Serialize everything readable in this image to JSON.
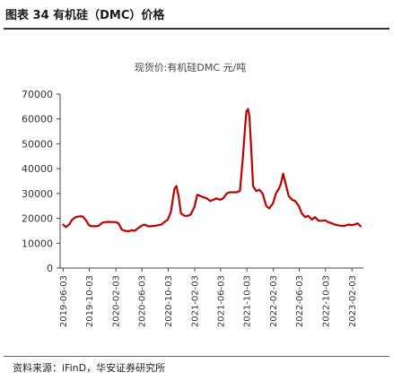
{
  "figure_title": "图表 34 有机硅（DMC）价格",
  "source_note": "资料来源：iFinD，华安证券研究所",
  "chart_data": {
    "type": "line",
    "title": "现货价:有机硅DMC 元/吨",
    "xlabel": "",
    "ylabel": "",
    "ylim": [
      0,
      70000
    ],
    "yticks": [
      "0",
      "10000",
      "20000",
      "30000",
      "40000",
      "50000",
      "60000",
      "70000"
    ],
    "x_ticks": [
      "2019-06-03",
      "2019-10-03",
      "2020-02-03",
      "2020-06-03",
      "2020-10-03",
      "2021-02-03",
      "2021-06-03",
      "2021-10-03",
      "2022-02-03",
      "2022-06-03",
      "2022-10-03",
      "2023-02-03"
    ],
    "grid": false,
    "series": [
      {
        "name": "",
        "color": "#c00000",
        "x": [
          "2019-06-03",
          "2019-06-15",
          "2019-07-01",
          "2019-07-15",
          "2019-08-01",
          "2019-08-15",
          "2019-09-01",
          "2019-09-15",
          "2019-10-01",
          "2019-10-15",
          "2019-11-01",
          "2019-11-15",
          "2019-12-01",
          "2019-12-15",
          "2020-01-01",
          "2020-01-15",
          "2020-02-01",
          "2020-02-15",
          "2020-03-01",
          "2020-03-15",
          "2020-04-01",
          "2020-04-15",
          "2020-05-01",
          "2020-05-15",
          "2020-06-01",
          "2020-06-15",
          "2020-07-01",
          "2020-07-15",
          "2020-08-01",
          "2020-08-15",
          "2020-09-01",
          "2020-09-15",
          "2020-10-01",
          "2020-10-15",
          "2020-11-01",
          "2020-11-10",
          "2020-11-20",
          "2020-12-01",
          "2020-12-10",
          "2020-12-20",
          "2021-01-01",
          "2021-01-15",
          "2021-02-01",
          "2021-02-15",
          "2021-03-01",
          "2021-03-15",
          "2021-04-01",
          "2021-04-15",
          "2021-05-01",
          "2021-05-15",
          "2021-06-01",
          "2021-06-15",
          "2021-07-01",
          "2021-07-15",
          "2021-08-01",
          "2021-08-15",
          "2021-09-01",
          "2021-09-15",
          "2021-09-25",
          "2021-10-01",
          "2021-10-08",
          "2021-10-15",
          "2021-10-22",
          "2021-11-01",
          "2021-11-15",
          "2021-12-01",
          "2021-12-15",
          "2022-01-01",
          "2022-01-15",
          "2022-02-01",
          "2022-02-15",
          "2022-03-01",
          "2022-03-10",
          "2022-03-20",
          "2022-04-01",
          "2022-04-15",
          "2022-05-01",
          "2022-05-15",
          "2022-06-01",
          "2022-06-15",
          "2022-07-01",
          "2022-07-15",
          "2022-08-01",
          "2022-08-15",
          "2022-09-01",
          "2022-09-15",
          "2022-10-01",
          "2022-10-15",
          "2022-11-01",
          "2022-11-15",
          "2022-12-01",
          "2022-12-15",
          "2023-01-01",
          "2023-01-15",
          "2023-02-01",
          "2023-02-15",
          "2023-03-01",
          "2023-03-15"
        ],
        "y": [
          17500,
          16500,
          17500,
          19500,
          20500,
          20800,
          20800,
          19500,
          17200,
          16800,
          16800,
          17000,
          18200,
          18500,
          18600,
          18500,
          18500,
          18000,
          15500,
          15000,
          14800,
          15200,
          15000,
          16000,
          17000,
          17500,
          16800,
          16800,
          17000,
          17200,
          17500,
          18500,
          19500,
          22500,
          32000,
          33000,
          29000,
          22000,
          21500,
          21000,
          21000,
          21500,
          24500,
          29500,
          29000,
          28500,
          28000,
          27000,
          27500,
          28000,
          27500,
          28000,
          30000,
          30500,
          30500,
          30500,
          31000,
          45000,
          57000,
          63000,
          64000,
          61000,
          50000,
          33000,
          31000,
          31500,
          30000,
          25000,
          24000,
          26000,
          30000,
          32000,
          34000,
          38000,
          34000,
          29000,
          27500,
          27000,
          25000,
          22000,
          20500,
          21000,
          19500,
          20500,
          19000,
          19000,
          19200,
          18500,
          18000,
          17500,
          17200,
          17000,
          17000,
          17500,
          17300,
          17500,
          18000,
          16800
        ]
      }
    ]
  }
}
